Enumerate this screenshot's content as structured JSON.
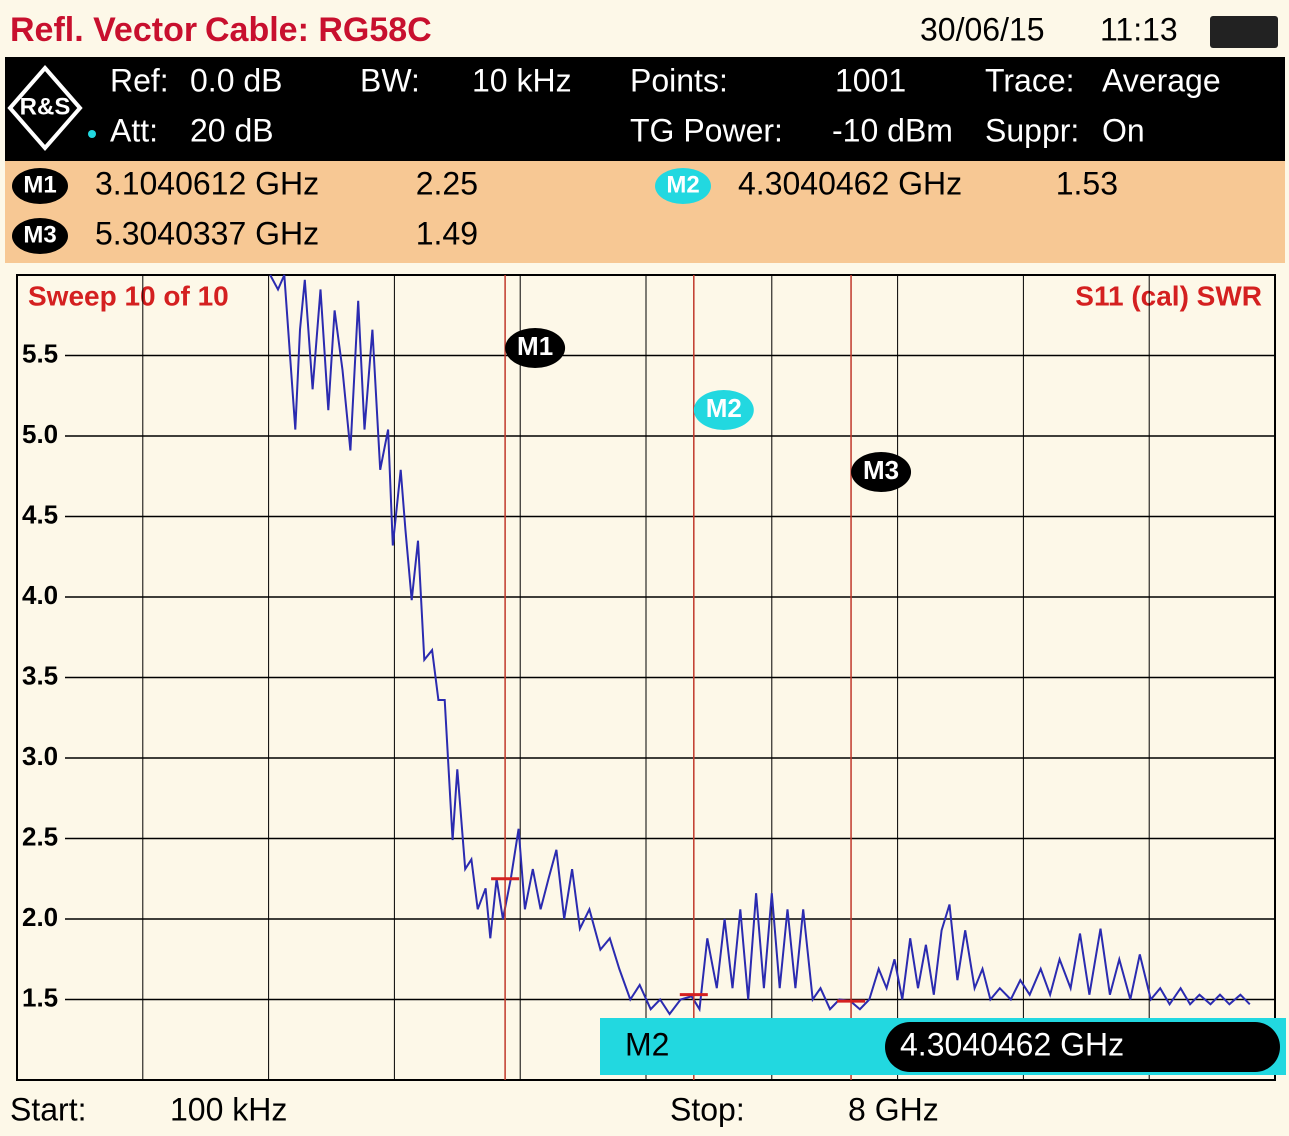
{
  "header": {
    "title": "Refl. Vector",
    "cable": "Cable: RG58C",
    "date": "30/06/15",
    "time": "11:13"
  },
  "settings": [
    {
      "label": "Ref:",
      "value": "0.0 dB"
    },
    {
      "label": "Att:",
      "value": "20 dB"
    },
    {
      "label": "BW:",
      "value": "10 kHz"
    },
    {
      "label": "Points:",
      "value": "1001"
    },
    {
      "label": "TG Power:",
      "value": "-10 dBm"
    },
    {
      "label": "Trace:",
      "value": "Average"
    },
    {
      "label": "Suppr:",
      "value": "On"
    }
  ],
  "footer": {
    "start_label": "Start:",
    "start": "100 kHz",
    "stop_label": "Stop:",
    "stop": "8 GHz"
  },
  "chart_data": {
    "type": "line",
    "sweep": "Sweep 10 of 10",
    "measurement": "S11 (cal) SWR",
    "color": "#2b2bb0",
    "xlim": [
      0.0001,
      8
    ],
    "ylim": [
      1,
      6
    ],
    "yticks": [
      1.5,
      {
        "value": 2,
        "label": "2.0"
      },
      2.5,
      {
        "value": 3,
        "label": "3.0"
      },
      3.5,
      {
        "value": 4,
        "label": "4.0"
      },
      4.5,
      {
        "value": 5,
        "label": "5.0"
      },
      5.5
    ],
    "grid": true,
    "markers": [
      {
        "name": "M1",
        "x": 3.1040612,
        "x_label": "3.1040612 GHz",
        "value": 2.25,
        "color": "#000000"
      },
      {
        "name": "M2",
        "x": 4.3040462,
        "x_label": "4.3040462 GHz",
        "value": 1.53,
        "color": "#22d8e0"
      },
      {
        "name": "M3",
        "x": 5.3040337,
        "x_label": "5.3040337 GHz",
        "value": 1.49,
        "color": "#000000"
      }
    ],
    "x": [
      1.61,
      1.66,
      1.7,
      1.77,
      1.8,
      1.83,
      1.88,
      1.93,
      1.98,
      2.02,
      2.07,
      2.12,
      2.17,
      2.21,
      2.26,
      2.31,
      2.36,
      2.39,
      2.44,
      2.47,
      2.51,
      2.55,
      2.59,
      2.64,
      2.68,
      2.72,
      2.77,
      2.8,
      2.85,
      2.89,
      2.93,
      2.98,
      3.01,
      3.05,
      3.09,
      3.14,
      3.19,
      3.23,
      3.28,
      3.33,
      3.38,
      3.43,
      3.48,
      3.53,
      3.58,
      3.64,
      3.71,
      3.77,
      3.83,
      3.9,
      3.96,
      4.03,
      4.09,
      4.15,
      4.22,
      4.29,
      4.34,
      4.39,
      4.45,
      4.5,
      4.55,
      4.6,
      4.65,
      4.7,
      4.75,
      4.8,
      4.85,
      4.9,
      4.95,
      5.0,
      5.06,
      5.11,
      5.17,
      5.23,
      5.3,
      5.36,
      5.42,
      5.48,
      5.53,
      5.58,
      5.63,
      5.68,
      5.73,
      5.78,
      5.83,
      5.88,
      5.93,
      5.98,
      6.03,
      6.09,
      6.14,
      6.19,
      6.25,
      6.32,
      6.38,
      6.44,
      6.51,
      6.57,
      6.63,
      6.7,
      6.76,
      6.82,
      6.89,
      6.95,
      7.01,
      7.08,
      7.14,
      7.21,
      7.27,
      7.33,
      7.4,
      7.46,
      7.52,
      7.59,
      7.65,
      7.71,
      7.78,
      7.84
    ],
    "values": [
      6.0,
      5.91,
      6.0,
      5.04,
      5.66,
      5.97,
      5.29,
      5.91,
      5.16,
      5.78,
      5.41,
      4.91,
      5.84,
      5.04,
      5.66,
      4.79,
      5.04,
      4.32,
      4.79,
      4.42,
      3.98,
      4.35,
      3.61,
      3.67,
      3.36,
      3.36,
      2.49,
      2.93,
      2.31,
      2.37,
      2.06,
      2.19,
      1.88,
      2.25,
      2.0,
      2.25,
      2.56,
      2.06,
      2.31,
      2.06,
      2.25,
      2.43,
      2.0,
      2.31,
      1.94,
      2.06,
      1.81,
      1.88,
      1.69,
      1.5,
      1.59,
      1.44,
      1.5,
      1.41,
      1.5,
      1.52,
      1.44,
      1.88,
      1.57,
      2.0,
      1.57,
      2.06,
      1.5,
      2.16,
      1.57,
      2.16,
      1.57,
      2.06,
      1.57,
      2.06,
      1.5,
      1.57,
      1.44,
      1.5,
      1.49,
      1.44,
      1.5,
      1.69,
      1.57,
      1.75,
      1.5,
      1.88,
      1.57,
      1.84,
      1.53,
      1.93,
      2.09,
      1.62,
      1.93,
      1.57,
      1.69,
      1.5,
      1.57,
      1.5,
      1.62,
      1.53,
      1.69,
      1.53,
      1.75,
      1.57,
      1.91,
      1.53,
      1.94,
      1.53,
      1.75,
      1.5,
      1.78,
      1.5,
      1.57,
      1.47,
      1.57,
      1.47,
      1.53,
      1.47,
      1.53,
      1.47,
      1.53,
      1.47
    ]
  }
}
